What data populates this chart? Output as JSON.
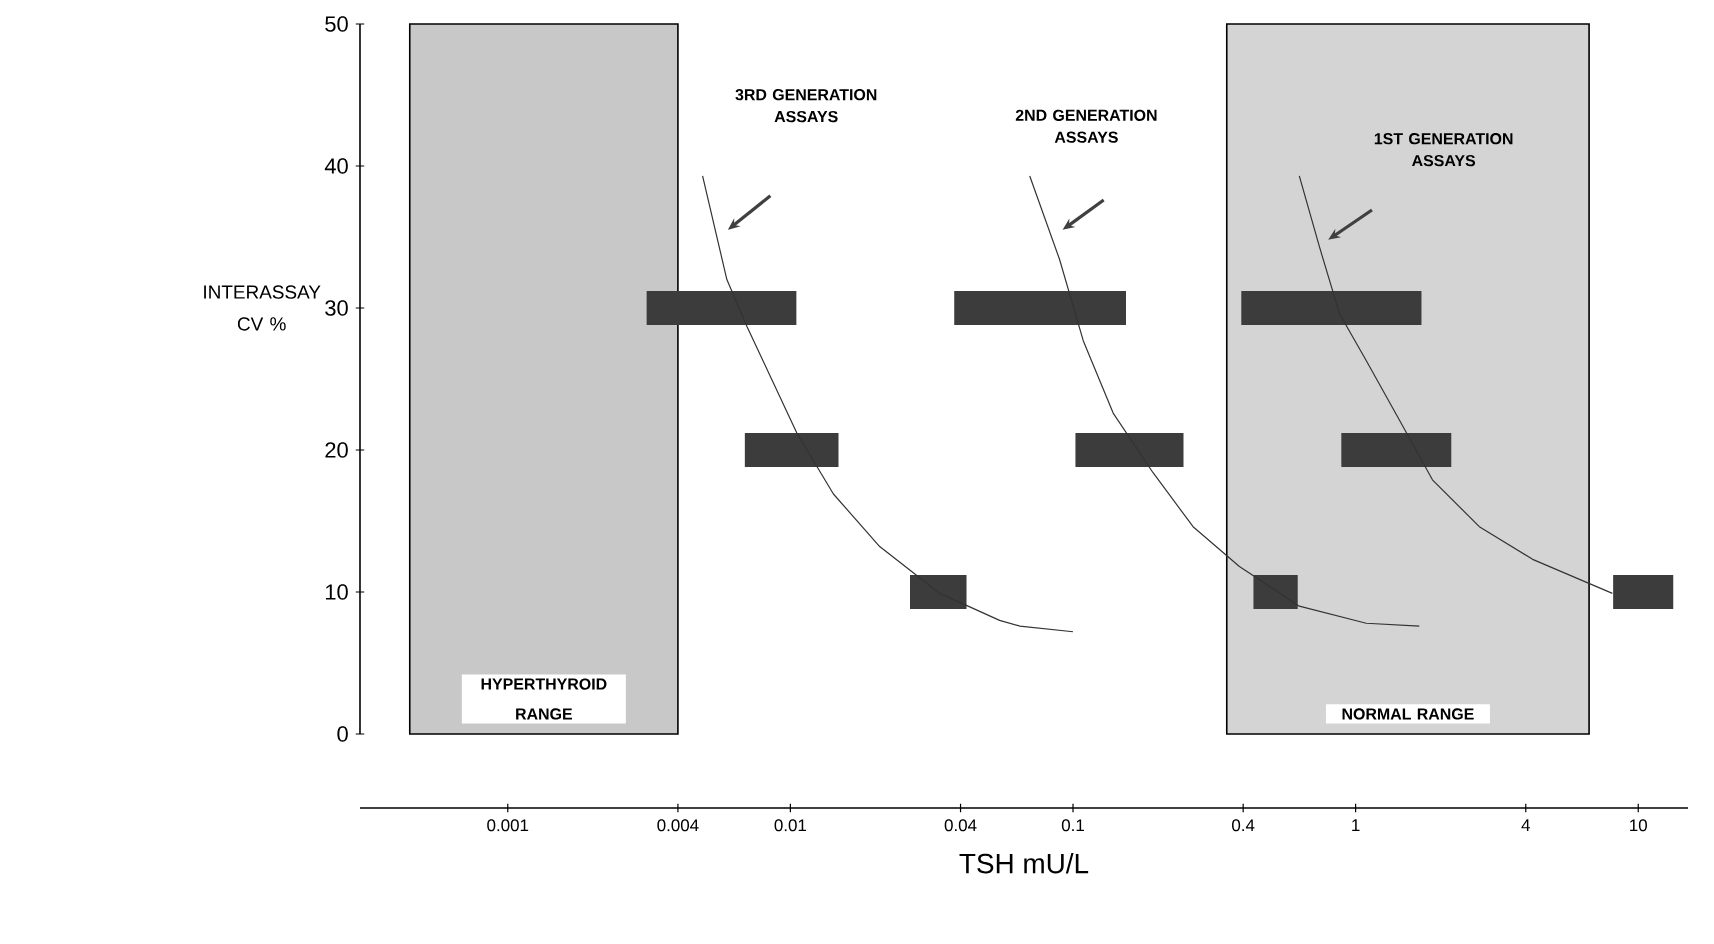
{
  "chart_data": {
    "type": "line",
    "xlabel": "TSH  mU/L",
    "ylabel": "INTERASSAY CV %",
    "log": "x",
    "xlim": [
      0.0003,
      15
    ],
    "ylim": [
      0,
      50
    ],
    "xticks": [
      0.001,
      0.004,
      0.01,
      0.04,
      0.1,
      0.4,
      1,
      4,
      10
    ],
    "yticks": [
      0,
      10,
      20,
      30,
      40,
      50
    ],
    "bands": [
      {
        "axis": "x",
        "from": 0.00045,
        "to": 0.004,
        "label": "HYPERTHYROID RANGE",
        "color": "#c8c8c8"
      },
      {
        "axis": "x",
        "from": 0.35,
        "to": 6.7,
        "label": "NORMAL RANGE",
        "color": "#d4d4d4"
      }
    ],
    "series": [
      {
        "color": "#333333",
        "x": [
          0.00489,
          0.00596,
          0.00702,
          0.01054,
          0.0142,
          0.0207,
          0.0338,
          0.055,
          0.0649,
          0.1
        ],
        "values": [
          39.3,
          32,
          28.7,
          21.2,
          16.9,
          13.2,
          9.9,
          8.0,
          7.6,
          7.2
        ]
      },
      {
        "color": "#333333",
        "x": [
          0.0703,
          0.0897,
          0.1087,
          0.1387,
          0.192,
          0.266,
          0.388,
          0.632,
          1.09,
          1.68
        ],
        "values": [
          39.3,
          33.4,
          27.7,
          22.6,
          18.4,
          14.6,
          11.8,
          9.0,
          7.8,
          7.6
        ]
      },
      {
        "color": "#333333",
        "x": [
          0.632,
          0.745,
          0.877,
          1.09,
          1.43,
          1.87,
          2.74,
          4.23,
          8.1
        ],
        "values": [
          39.3,
          34.3,
          29.6,
          26.3,
          22.1,
          17.9,
          14.6,
          12.3,
          9.9
        ]
      },
      {
        "color": "#3c3c3c",
        "x": [
          0.0031,
          0.0105
        ],
        "values": [
          30,
          30
        ]
      },
      {
        "color": "#3c3c3c",
        "x": [
          0.0069,
          0.0148
        ],
        "values": [
          20,
          20
        ]
      },
      {
        "color": "#3c3c3c",
        "x": [
          0.0265,
          0.042
        ],
        "values": [
          10,
          10
        ]
      },
      {
        "color": "#3c3c3c",
        "x": [
          0.038,
          0.154
        ],
        "values": [
          30,
          30
        ]
      },
      {
        "color": "#3c3c3c",
        "x": [
          0.102,
          0.246
        ],
        "values": [
          20,
          20
        ]
      },
      {
        "color": "#3c3c3c",
        "x": [
          0.435,
          0.624
        ],
        "values": [
          10,
          10
        ]
      },
      {
        "color": "#3c3c3c",
        "x": [
          0.394,
          1.71
        ],
        "values": [
          30,
          30
        ]
      },
      {
        "color": "#3c3c3c",
        "x": [
          0.89,
          2.18
        ],
        "values": [
          20,
          20
        ]
      },
      {
        "color": "#3c3c3c",
        "x": [
          8.15,
          13.3
        ],
        "values": [
          10,
          10
        ]
      }
    ],
    "annotations": [
      "3RD GENERATION ASSAYS",
      "2ND GENERATION ASSAYS",
      "1ST GENERATION ASSAYS"
    ]
  }
}
